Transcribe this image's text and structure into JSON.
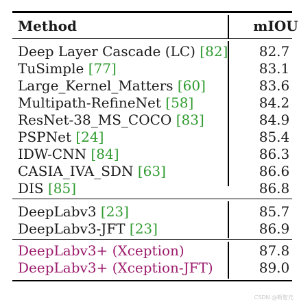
{
  "table": {
    "headers": {
      "method": "Method",
      "metric": "mIOU"
    },
    "groups": [
      {
        "rows": [
          {
            "name": "Deep Layer Cascade (LC)",
            "cite": "[82]",
            "value": "82.7"
          },
          {
            "name": "TuSimple",
            "cite": "[77]",
            "value": "83.1"
          },
          {
            "name": "Large_Kernel_Matters",
            "cite": "[60]",
            "value": "83.6"
          },
          {
            "name": "Multipath-RefineNet",
            "cite": "[58]",
            "value": "84.2"
          },
          {
            "name": "ResNet-38_MS_COCO",
            "cite": "[83]",
            "value": "84.9"
          },
          {
            "name": "PSPNet",
            "cite": "[24]",
            "value": "85.4"
          },
          {
            "name": "IDW-CNN",
            "cite": "[84]",
            "value": "86.3"
          },
          {
            "name": "CASIA_IVA_SDN",
            "cite": "[63]",
            "value": "86.6"
          },
          {
            "name": "DIS",
            "cite": "[85]",
            "value": "86.8"
          }
        ]
      },
      {
        "rows": [
          {
            "name": "DeepLabv3",
            "cite": "[23]",
            "value": "85.7"
          },
          {
            "name": "DeepLabv3-JFT",
            "cite": "[23]",
            "value": "86.9"
          }
        ]
      },
      {
        "rows": [
          {
            "name": "DeepLabv3+ (Xception)",
            "cite": "",
            "value": "87.8"
          },
          {
            "name": "DeepLabv3+ (Xception-JFT)",
            "cite": "",
            "value": "89.0"
          }
        ]
      }
    ]
  },
  "colors": {
    "citation": "#2e9b2e",
    "highlight": "#9c1a6b",
    "rule": "#000000"
  },
  "watermark": "CSDN @新智元"
}
